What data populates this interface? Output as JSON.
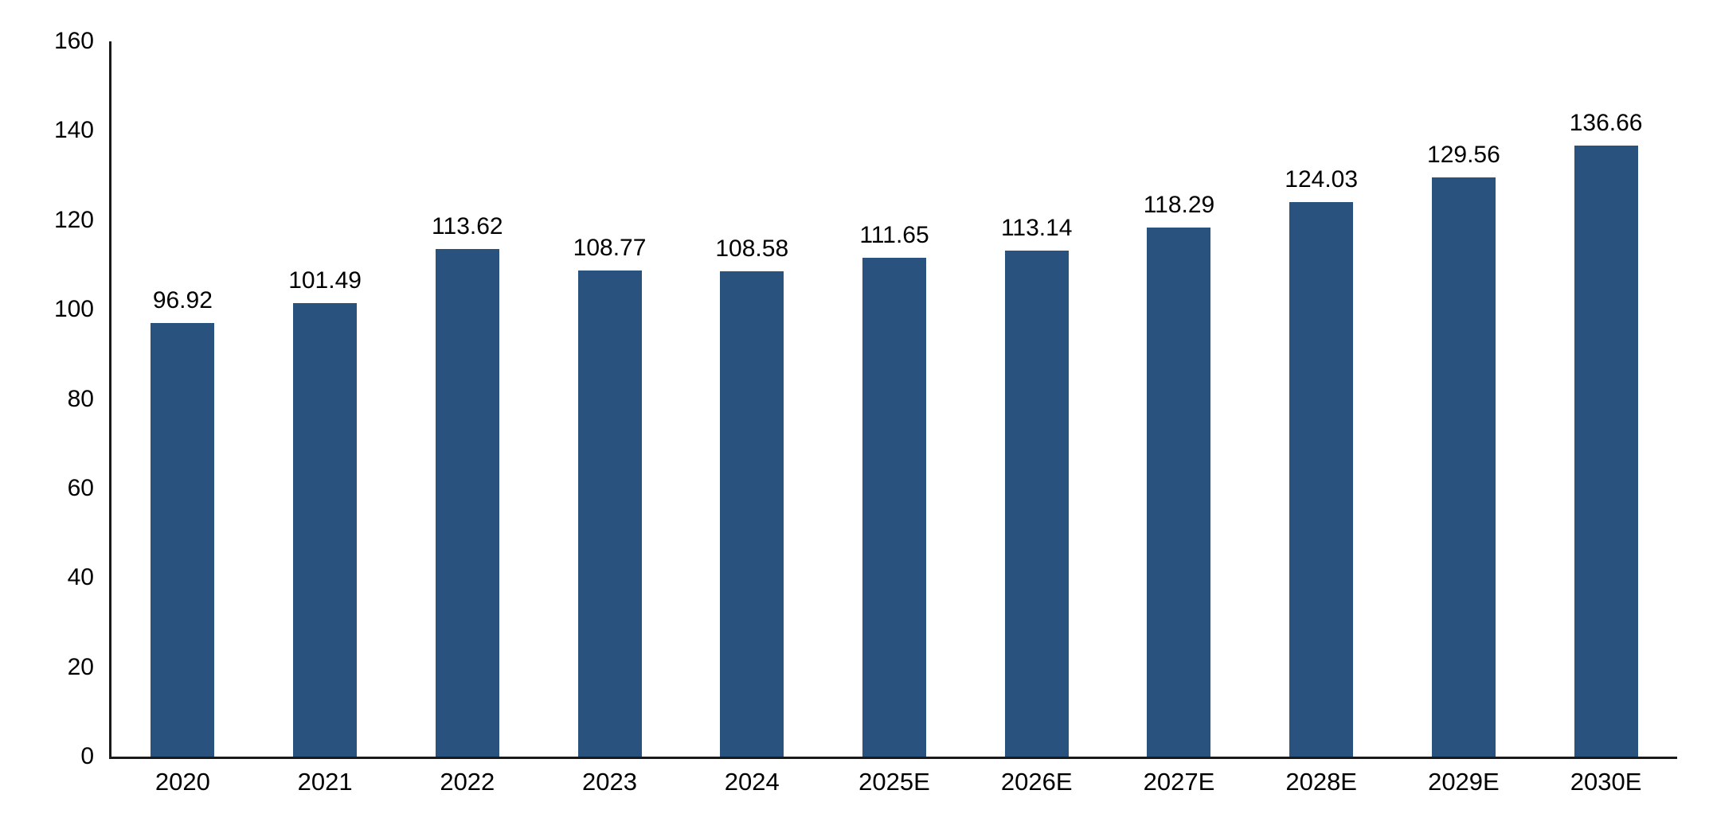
{
  "chart_data": {
    "type": "bar",
    "title": "",
    "xlabel": "",
    "ylabel": "",
    "categories": [
      "2020",
      "2021",
      "2022",
      "2023",
      "2024",
      "2025E",
      "2026E",
      "2027E",
      "2028E",
      "2029E",
      "2030E"
    ],
    "values": [
      96.92,
      101.49,
      113.62,
      108.77,
      108.58,
      111.65,
      113.14,
      118.29,
      124.03,
      129.56,
      136.66
    ],
    "value_label_decimals": 2,
    "ylim": [
      0,
      160
    ],
    "yticks": [
      0,
      20,
      40,
      60,
      80,
      100,
      120,
      140,
      160
    ],
    "grid": false,
    "legend": "none",
    "bar_color": "#29537E",
    "axis_color": "#1a1a1a",
    "text_color": "#000000"
  }
}
